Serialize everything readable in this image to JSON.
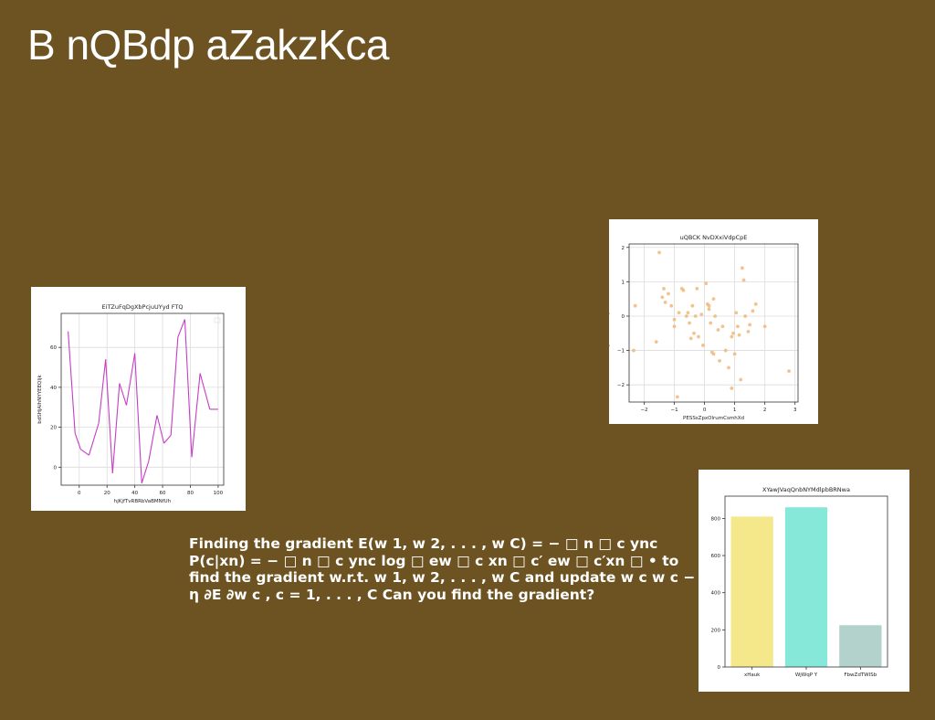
{
  "slide": {
    "title": "B nQBdp aZakzKca",
    "body": "Finding the gradient E(w 1, w 2, . . . , w C) = − □ n □ c ync P(c|xn) = − □ n □ c ync log □ ew □ c xn □ c′ ew □ c′xn □ • to find the gradient w.r.t. w 1, w 2, . . . , w C and update w c w c − η ∂E ∂w c , c = 1, . . . , C Can you find the gradient?"
  },
  "chart_data": [
    {
      "type": "line",
      "title": "EiTZuFqDgXbPcjuUYyd FTQ",
      "xlabel": "hjKjfTvRBRbVaBMNfUh",
      "ylabel": "bdSHjAIhNYYEEQIjk",
      "xlim": [
        -13,
        104
      ],
      "ylim": [
        -9,
        77
      ],
      "xticks": [
        0,
        20,
        40,
        60,
        80,
        100
      ],
      "yticks": [
        0,
        20,
        40,
        60
      ],
      "grid": true,
      "color": "#c43fc4",
      "x": [
        -8,
        -3,
        1,
        7,
        14,
        19,
        24,
        29,
        34,
        40,
        45,
        50,
        56,
        61,
        66,
        71,
        76,
        81,
        87,
        94,
        100
      ],
      "y": [
        68,
        17,
        9,
        6,
        22,
        54,
        -3,
        42,
        31,
        57,
        -8,
        3,
        26,
        12,
        16,
        65,
        74,
        5,
        47,
        29,
        29
      ]
    },
    {
      "type": "scatter",
      "title": "uQBCK NvDXxiVdpCpE",
      "xlabel": "PESSsZpxOlrumCsmhXd",
      "ylabel": "LIRqaTTcTLSWCQVMhWkb",
      "xlim": [
        -2.5,
        3.1
      ],
      "ylim": [
        -2.5,
        2.1
      ],
      "xticks": [
        -2,
        -1,
        0,
        1,
        2,
        3
      ],
      "yticks": [
        -2,
        -1,
        0,
        1,
        2
      ],
      "grid": true,
      "color": "#f0b87a",
      "points": [
        [
          -2.3,
          0.3
        ],
        [
          -2.35,
          -1.0
        ],
        [
          -1.5,
          1.85
        ],
        [
          -1.35,
          0.8
        ],
        [
          -1.4,
          0.55
        ],
        [
          -1.3,
          0.4
        ],
        [
          -1.2,
          0.65
        ],
        [
          -1.1,
          0.3
        ],
        [
          -1.0,
          -0.1
        ],
        [
          -1.0,
          -0.3
        ],
        [
          -0.85,
          0.1
        ],
        [
          -0.75,
          0.8
        ],
        [
          -0.7,
          0.75
        ],
        [
          -0.6,
          0.0
        ],
        [
          -0.55,
          0.1
        ],
        [
          -0.5,
          -0.2
        ],
        [
          -0.45,
          -0.65
        ],
        [
          -0.4,
          0.3
        ],
        [
          -0.35,
          -0.5
        ],
        [
          -0.3,
          0.0
        ],
        [
          -0.25,
          0.8
        ],
        [
          -0.2,
          -0.6
        ],
        [
          -0.1,
          0.05
        ],
        [
          -0.05,
          -0.85
        ],
        [
          0.05,
          0.95
        ],
        [
          0.1,
          0.35
        ],
        [
          0.15,
          0.2
        ],
        [
          0.2,
          -0.2
        ],
        [
          0.25,
          -1.05
        ],
        [
          0.3,
          0.5
        ],
        [
          0.3,
          -1.1
        ],
        [
          0.35,
          0.0
        ],
        [
          0.45,
          -0.4
        ],
        [
          0.5,
          -1.3
        ],
        [
          0.6,
          -0.3
        ],
        [
          0.7,
          -1.0
        ],
        [
          0.8,
          -1.5
        ],
        [
          0.9,
          -0.6
        ],
        [
          0.95,
          -0.5
        ],
        [
          1.0,
          -1.1
        ],
        [
          1.05,
          0.1
        ],
        [
          1.1,
          -0.3
        ],
        [
          1.15,
          -0.55
        ],
        [
          1.2,
          -1.85
        ],
        [
          1.25,
          1.4
        ],
        [
          1.3,
          1.05
        ],
        [
          1.35,
          0.0
        ],
        [
          1.45,
          -0.45
        ],
        [
          1.5,
          -0.25
        ],
        [
          1.6,
          0.15
        ],
        [
          1.7,
          0.35
        ],
        [
          2.0,
          -0.3
        ],
        [
          2.8,
          -1.6
        ],
        [
          -0.9,
          -2.35
        ],
        [
          0.9,
          -2.1
        ],
        [
          -1.6,
          -0.75
        ],
        [
          0.15,
          0.3
        ]
      ]
    },
    {
      "type": "bar",
      "title": "XYawJVaqQnbNYMdlpbBRNwa",
      "categories": [
        "xHauk",
        "WjWqP Y",
        "FbwZdTWISb"
      ],
      "values": [
        810,
        860,
        225
      ],
      "colors": [
        "#f5e88a",
        "#86e8d8",
        "#b4d2cc"
      ],
      "xlabel": "",
      "ylabel": "",
      "ylim": [
        0,
        920
      ],
      "yticks": [
        0,
        200,
        400,
        600,
        800
      ],
      "grid": false
    }
  ]
}
